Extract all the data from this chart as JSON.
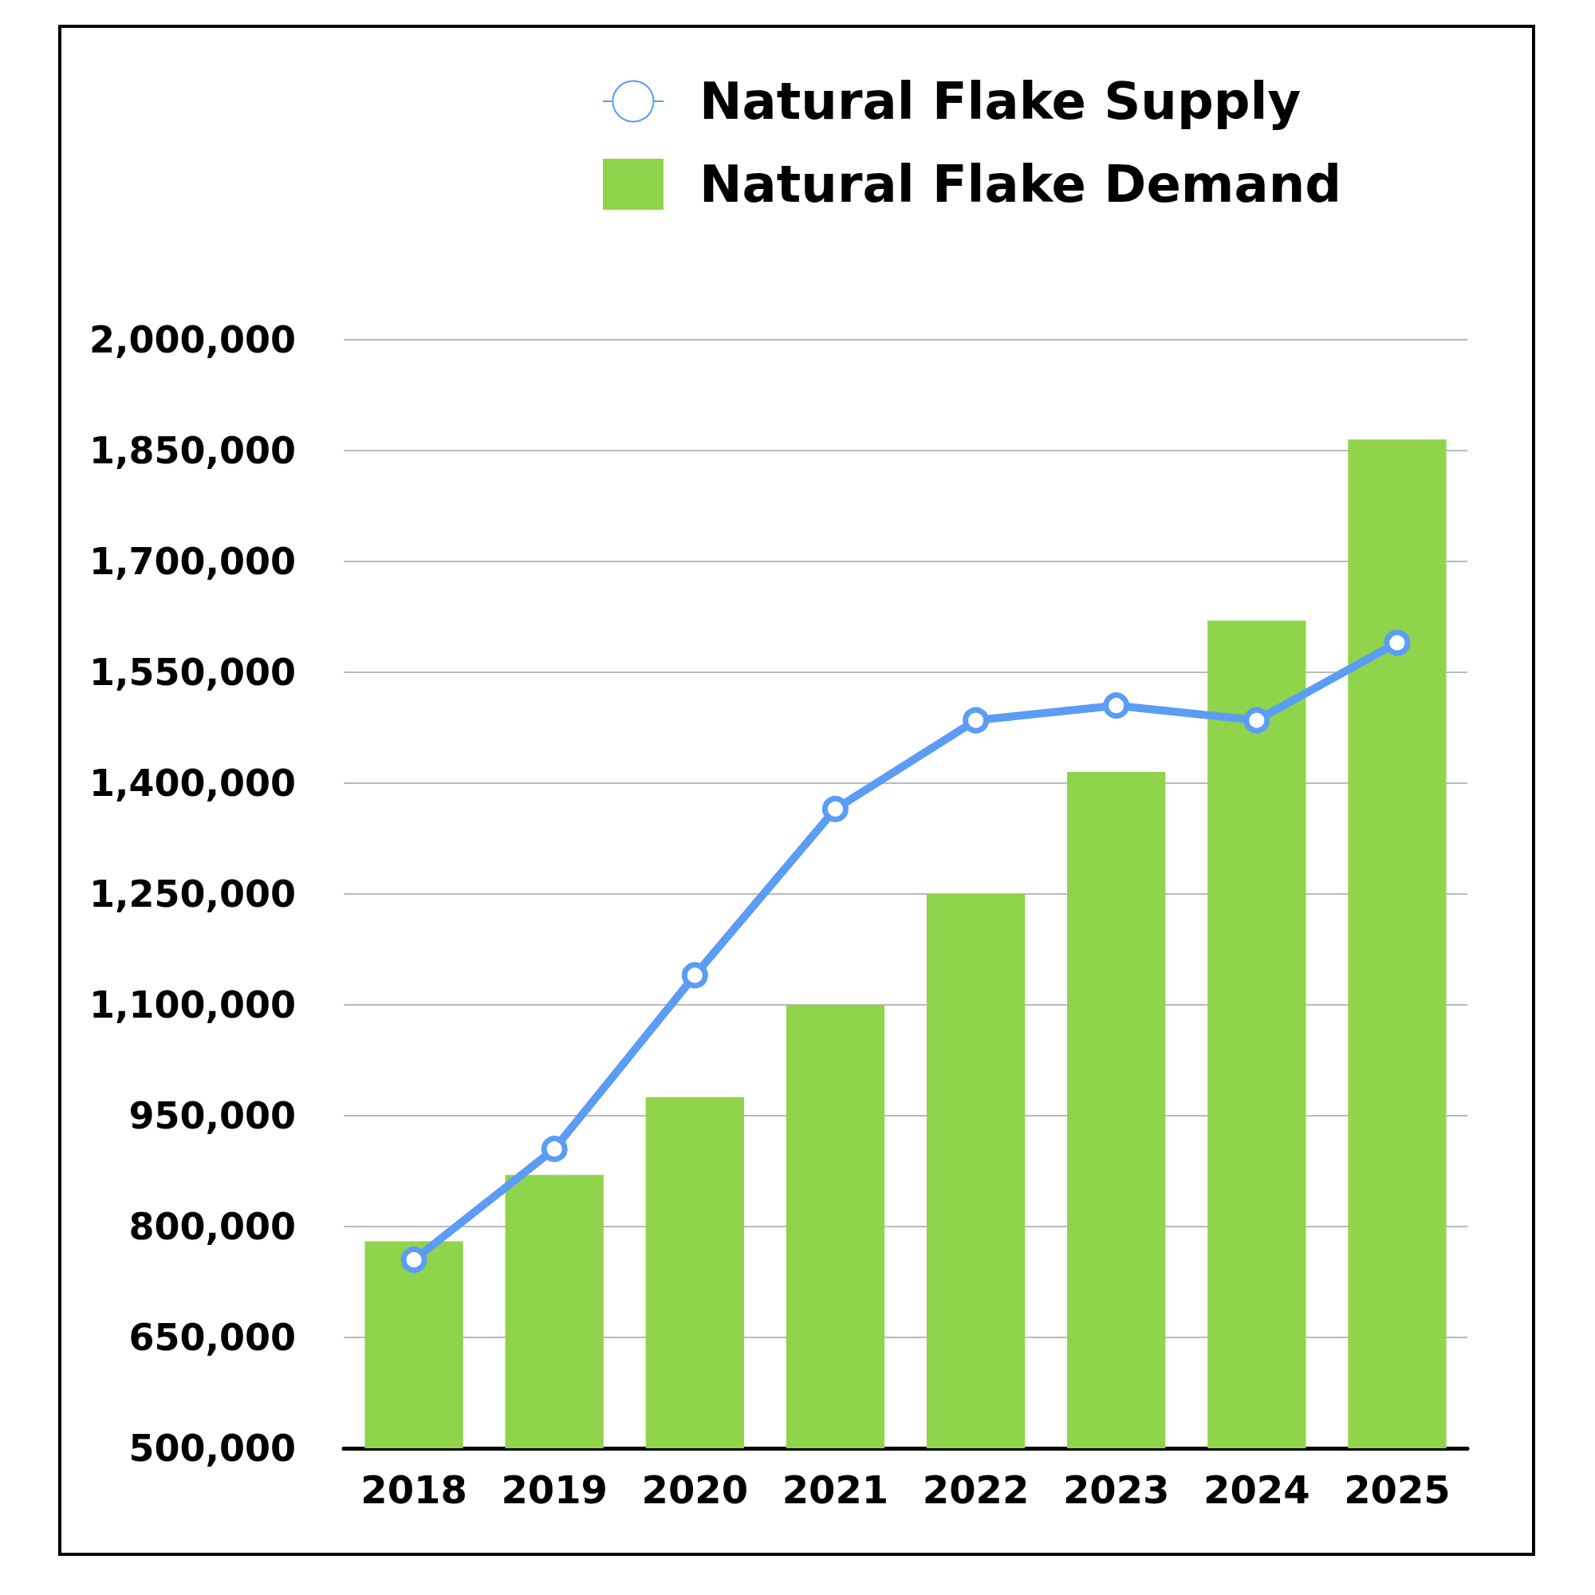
{
  "chart_data": {
    "type": "bar",
    "categories": [
      "2018",
      "2019",
      "2020",
      "2021",
      "2022",
      "2023",
      "2024",
      "2025"
    ],
    "series": [
      {
        "name": "Natural Flake Supply",
        "type": "line",
        "color": "#5b9cf5",
        "marker": "circle",
        "values": [
          755000,
          905000,
          1140000,
          1365000,
          1485000,
          1505000,
          1485000,
          1590000
        ]
      },
      {
        "name": "Natural Flake Demand",
        "color": "#8fd44b",
        "values": [
          780000,
          870000,
          975000,
          1100000,
          1250000,
          1415000,
          1620000,
          1865000
        ]
      }
    ],
    "ylim": [
      500000,
      2000000
    ],
    "yticks": [
      {
        "value": 500000,
        "label": "500,000"
      },
      {
        "value": 650000,
        "label": "650,000"
      },
      {
        "value": 800000,
        "label": "800,000"
      },
      {
        "value": 950000,
        "label": "950,000"
      },
      {
        "value": 1100000,
        "label": "1,100,000"
      },
      {
        "value": 1250000,
        "label": "1,250,000"
      },
      {
        "value": 1400000,
        "label": "1,400,000"
      },
      {
        "value": 1550000,
        "label": "1,550,000"
      },
      {
        "value": 1700000,
        "label": "1,700,000"
      },
      {
        "value": 1850000,
        "label": "1,850,000"
      },
      {
        "value": 2000000,
        "label": "2,000,000"
      }
    ],
    "grid": "y",
    "legend": "top right"
  }
}
